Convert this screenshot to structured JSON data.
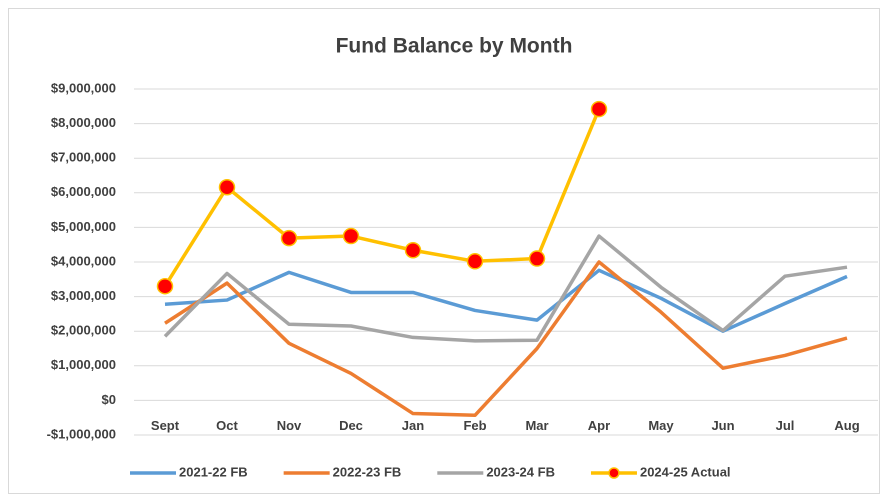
{
  "chart_data": {
    "type": "line",
    "title": "Fund Balance by Month",
    "categories": [
      "Sept",
      "Oct",
      "Nov",
      "Dec",
      "Jan",
      "Feb",
      "Mar",
      "Apr",
      "May",
      "Jun",
      "Jul",
      "Aug"
    ],
    "series": [
      {
        "name": "2021-22 FB",
        "color": "#5b9bd5",
        "values": [
          2780000,
          2900000,
          3700000,
          3120000,
          3120000,
          2600000,
          2320000,
          3760000,
          2950000,
          2000000,
          2800000,
          3580000
        ]
      },
      {
        "name": "2022-23 FB",
        "color": "#ed7d31",
        "values": [
          2230000,
          3390000,
          1650000,
          780000,
          -380000,
          -430000,
          1500000,
          4000000,
          2550000,
          930000,
          1300000,
          1800000
        ]
      },
      {
        "name": "2023-24 FB",
        "color": "#a5a5a5",
        "values": [
          1850000,
          3670000,
          2200000,
          2150000,
          1820000,
          1720000,
          1740000,
          4750000,
          3270000,
          2020000,
          3590000,
          3850000
        ]
      },
      {
        "name": "2024-25 Actual",
        "color": "#ffc000",
        "marker_color": "#ff0000",
        "values": [
          3300000,
          6160000,
          4690000,
          4750000,
          4340000,
          4020000,
          4100000,
          8420000,
          null,
          null,
          null,
          null
        ]
      }
    ],
    "ylim": [
      -1000000,
      9000000
    ],
    "yticks": [
      {
        "value": -1000000,
        "label": "-$1,000,000"
      },
      {
        "value": 0,
        "label": "$0"
      },
      {
        "value": 1000000,
        "label": "$1,000,000"
      },
      {
        "value": 2000000,
        "label": "$2,000,000"
      },
      {
        "value": 3000000,
        "label": "$3,000,000"
      },
      {
        "value": 4000000,
        "label": "$4,000,000"
      },
      {
        "value": 5000000,
        "label": "$5,000,000"
      },
      {
        "value": 6000000,
        "label": "$6,000,000"
      },
      {
        "value": 7000000,
        "label": "$7,000,000"
      },
      {
        "value": 8000000,
        "label": "$8,000,000"
      },
      {
        "value": 9000000,
        "label": "$9,000,000"
      }
    ],
    "grid": true,
    "legend": "bottom"
  }
}
